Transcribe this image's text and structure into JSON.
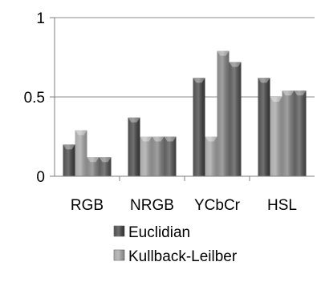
{
  "chart_data": {
    "type": "bar",
    "categories": [
      "RGB",
      "NRGB",
      "YCbCr",
      "HSL"
    ],
    "ylim": [
      0,
      1
    ],
    "yticks": [
      {
        "value": 0,
        "label": "0"
      },
      {
        "value": 0.5,
        "label": "0.5"
      },
      {
        "value": 1,
        "label": "1"
      }
    ],
    "grid": true,
    "legend_placement": "bottom",
    "series": [
      {
        "name": "Euclidian",
        "values": [
          0.2,
          0.37,
          0.62,
          0.62
        ],
        "color": "#3a3a3a"
      },
      {
        "name": "Kullback-Leilber",
        "values": [
          0.29,
          0.25,
          0.25,
          0.5
        ],
        "color": "#a0a0a0"
      },
      {
        "values": [
          0.12,
          0.25,
          0.79,
          0.54
        ],
        "color": "#7b7b7b"
      },
      {
        "values": [
          0.12,
          0.25,
          0.72,
          0.54
        ],
        "color": "#4a4a4a"
      }
    ]
  }
}
